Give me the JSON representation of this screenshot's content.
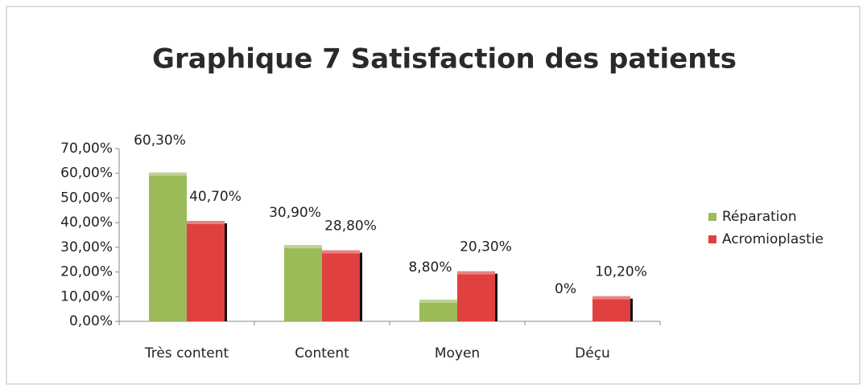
{
  "chart_data": {
    "type": "bar",
    "title": "Graphique 7 Satisfaction des patients",
    "categories": [
      "Très content",
      "Content",
      "Moyen",
      "Déçu"
    ],
    "series": [
      {
        "name": "Réparation",
        "color": "#9bbb59",
        "values": [
          60.3,
          30.9,
          8.8,
          0
        ],
        "value_labels": [
          "60,30%",
          "30,90%",
          "8,80%",
          "0%"
        ]
      },
      {
        "name": "Acromioplastie",
        "color": "#e0403f",
        "values": [
          40.7,
          28.8,
          20.3,
          10.2
        ],
        "value_labels": [
          "40,70%",
          "28,80%",
          "20,30%",
          "10,20%"
        ]
      }
    ],
    "ylim": [
      0,
      70
    ],
    "yticks": [
      {
        "value": 0,
        "label": "0,00%"
      },
      {
        "value": 10,
        "label": "10,00%"
      },
      {
        "value": 20,
        "label": "20,00%"
      },
      {
        "value": 30,
        "label": "30,00%"
      },
      {
        "value": 40,
        "label": "40,00%"
      },
      {
        "value": 50,
        "label": "50,00%"
      },
      {
        "value": 60,
        "label": "60,00%"
      },
      {
        "value": 70,
        "label": "70,00%"
      }
    ],
    "grid": false,
    "legend": "right"
  }
}
